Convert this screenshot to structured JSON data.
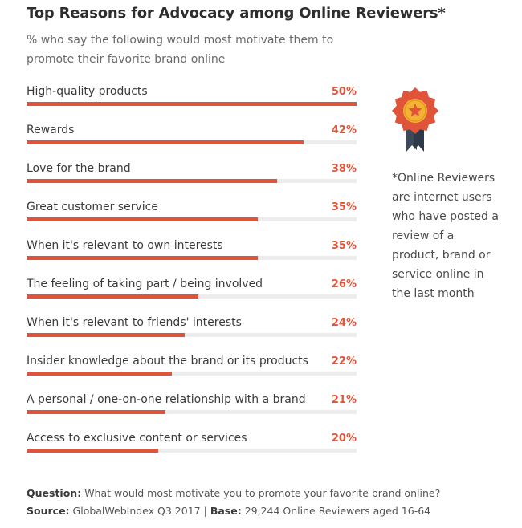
{
  "chart_data": {
    "type": "bar",
    "orientation": "horizontal",
    "title": "Top Reasons for Advocacy among Online Reviewers*",
    "subtitle": "% who say the following would most motivate them to promote their favorite brand online",
    "categories": [
      "High-quality products",
      "Rewards",
      "Love for the brand",
      "Great customer service",
      "When it's relevant to own interests",
      "The feeling of taking part / being involved",
      "When it's relevant to friends' interests",
      "Insider knowledge about the brand or its products",
      "A personal / one-on-one relationship with a brand",
      "Access to exclusive content or services"
    ],
    "values": [
      50,
      42,
      38,
      35,
      35,
      26,
      24,
      22,
      21,
      20
    ],
    "value_labels": [
      "50%",
      "42%",
      "38%",
      "35%",
      "35%",
      "26%",
      "24%",
      "22%",
      "21%",
      "20%"
    ],
    "xlim": [
      0,
      50
    ],
    "unit": "%",
    "bar_color": "#e0553a",
    "track_color": "#ededed"
  },
  "note": "*Online Reviewers are internet users who have posted a review of a product, brand or service online in the last month",
  "medal": {
    "icon": "award-medal-icon",
    "ribbon_color": "#e0553a",
    "center_color": "#f5b335",
    "tail_color": "#3d4a5c"
  },
  "footer": {
    "question_label": "Question:",
    "question_text": "What would most motivate you to promote your favorite brand online?",
    "source_label": "Source:",
    "source_text": "GlobalWebIndex Q3 2017",
    "separator": "|",
    "base_label": "Base:",
    "base_text": "29,244 Online Reviewers aged 16-64"
  }
}
